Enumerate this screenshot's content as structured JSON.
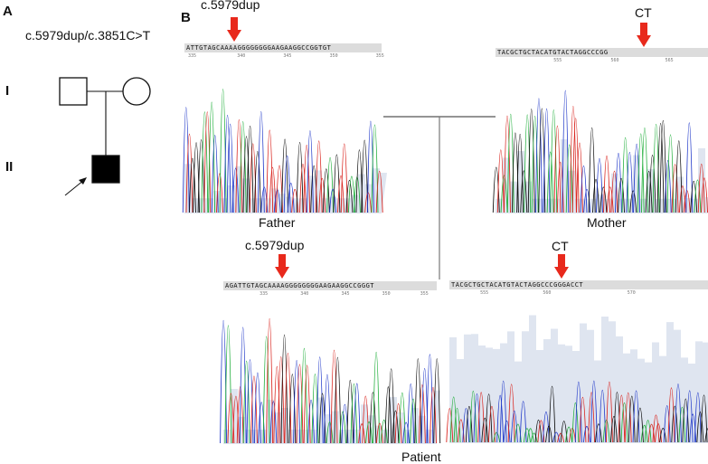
{
  "panel_a": {
    "letter": "A",
    "mutation": "c.5979dup/c.3851C>T",
    "generations": [
      "I",
      "II"
    ]
  },
  "panel_b": {
    "letter": "B",
    "father": {
      "caption": "Father",
      "mutation": "c.5979dup",
      "sequence": "ATTGTAGCAAAAGGGGGGGGAAGAAGGCCGGTGT",
      "positions": [
        "335",
        "340",
        "345",
        "350",
        "355"
      ]
    },
    "mother": {
      "caption": "Mother",
      "mutation": "CT",
      "sequence": "TACGCTGCTACATGTACTAGGCCCGG",
      "positions": [
        "555",
        "560",
        "565"
      ]
    },
    "patient_left": {
      "mutation": "c.5979dup",
      "sequence": "AGATTGTAGCAAAAGGGGGGGGAAGAAGGCCGGGT",
      "positions": [
        "335",
        "340",
        "345",
        "350",
        "355"
      ]
    },
    "patient_right": {
      "mutation": "CT",
      "sequence": "TACGCTGCTACATGTACTAGGCCCGGGACCT",
      "positions": [
        "555",
        "560",
        "570"
      ]
    },
    "patient_caption": "Patient"
  },
  "colors": {
    "arrow": "#e8291c",
    "A": "#1fae3a",
    "C": "#2139c9",
    "G": "#111111",
    "T": "#d9231d",
    "shade": "#dfe5f0"
  }
}
